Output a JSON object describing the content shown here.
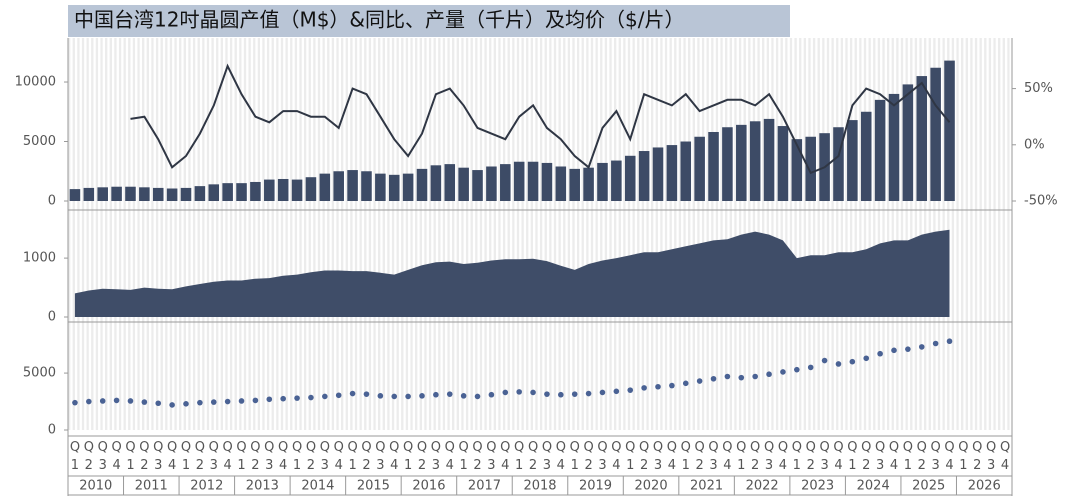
{
  "chart_data": {
    "type": "combo",
    "title": "中国台湾12吋晶圆产值（M$）&同比、产量（千片）及均价（$/片）",
    "categories": [
      "Q1",
      "Q2",
      "Q3",
      "Q4",
      "Q1",
      "Q2",
      "Q3",
      "Q4",
      "Q1",
      "Q2",
      "Q3",
      "Q4",
      "Q1",
      "Q2",
      "Q3",
      "Q4",
      "Q1",
      "Q2",
      "Q3",
      "Q4",
      "Q1",
      "Q2",
      "Q3",
      "Q4",
      "Q1",
      "Q2",
      "Q3",
      "Q4",
      "Q1",
      "Q2",
      "Q3",
      "Q4",
      "Q1",
      "Q2",
      "Q3",
      "Q4",
      "Q1",
      "Q2",
      "Q3",
      "Q4",
      "Q1",
      "Q2",
      "Q3",
      "Q4",
      "Q1",
      "Q2",
      "Q3",
      "Q4",
      "Q1",
      "Q2",
      "Q3",
      "Q4",
      "Q1",
      "Q2",
      "Q3",
      "Q4",
      "Q1",
      "Q2",
      "Q3",
      "Q4",
      "Q1",
      "Q2",
      "Q3",
      "Q4",
      "Q1",
      "Q2",
      "Q3",
      "Q4"
    ],
    "years": [
      "2010",
      "2011",
      "2012",
      "2013",
      "2014",
      "2015",
      "2016",
      "2017",
      "2018",
      "2019",
      "2020",
      "2021",
      "2022",
      "2023",
      "2024",
      "2025",
      "2026"
    ],
    "panels": [
      {
        "ylim": [
          0,
          13700
        ],
        "yticks": [
          0,
          5000,
          10000
        ],
        "y2lim": [
          -50,
          95
        ],
        "y2ticks": [
          {
            "value": -50,
            "label": "-50%"
          },
          {
            "value": 0,
            "label": "0%"
          },
          {
            "value": 50,
            "label": "50%"
          }
        ],
        "series": [
          {
            "type": "bar",
            "color": "#3d4b66",
            "values": [
              1000,
              1100,
              1150,
              1200,
              1200,
              1150,
              1100,
              1050,
              1100,
              1250,
              1400,
              1500,
              1500,
              1600,
              1800,
              1850,
              1800,
              2000,
              2300,
              2500,
              2600,
              2500,
              2300,
              2200,
              2300,
              2700,
              3000,
              3100,
              2800,
              2600,
              2900,
              3100,
              3300,
              3300,
              3200,
              2900,
              2700,
              2800,
              3200,
              3400,
              3800,
              4200,
              4500,
              4700,
              5000,
              5400,
              5800,
              6200,
              6400,
              6700,
              6900,
              6300,
              5200,
              5400,
              5700,
              6200,
              6800,
              7500,
              8500,
              9000,
              9800,
              10500,
              11200,
              11800,
              null,
              null,
              null,
              null
            ]
          },
          {
            "type": "line",
            "axis": "y2",
            "color": "#2f3644",
            "values": [
              null,
              null,
              null,
              null,
              23,
              25,
              5,
              -20,
              -10,
              10,
              35,
              70,
              45,
              25,
              20,
              30,
              30,
              25,
              25,
              15,
              50,
              45,
              25,
              5,
              -10,
              10,
              45,
              50,
              35,
              15,
              10,
              5,
              25,
              35,
              15,
              5,
              -10,
              -20,
              15,
              30,
              5,
              45,
              40,
              35,
              45,
              30,
              35,
              40,
              40,
              35,
              45,
              25,
              0,
              -25,
              -20,
              -10,
              35,
              50,
              45,
              35,
              45,
              55,
              35,
              20,
              null,
              null,
              null,
              null
            ]
          }
        ]
      },
      {
        "ylim": [
          0,
          1800
        ],
        "yticks": [
          0,
          1000
        ],
        "series": [
          {
            "type": "area",
            "color": "#3f4d68",
            "values": [
              400,
              450,
              480,
              470,
              460,
              500,
              480,
              470,
              520,
              560,
              600,
              620,
              620,
              650,
              660,
              700,
              720,
              760,
              790,
              790,
              780,
              780,
              750,
              720,
              800,
              880,
              930,
              940,
              900,
              920,
              960,
              980,
              980,
              990,
              950,
              870,
              800,
              900,
              960,
              1000,
              1050,
              1100,
              1100,
              1150,
              1200,
              1250,
              1300,
              1320,
              1400,
              1450,
              1400,
              1300,
              1000,
              1050,
              1050,
              1100,
              1100,
              1150,
              1250,
              1300,
              1300,
              1400,
              1450,
              1480,
              null,
              null,
              null,
              null
            ]
          }
        ]
      },
      {
        "ylim": [
          0,
          9400
        ],
        "yticks": [
          0,
          5000
        ],
        "series": [
          {
            "type": "scatter",
            "color": "#4a6294",
            "values": [
              2400,
              2500,
              2550,
              2600,
              2550,
              2450,
              2350,
              2200,
              2300,
              2400,
              2450,
              2500,
              2550,
              2600,
              2700,
              2750,
              2800,
              2850,
              2950,
              3050,
              3200,
              3150,
              3000,
              2950,
              2950,
              3000,
              3100,
              3150,
              3000,
              2950,
              3100,
              3300,
              3350,
              3300,
              3150,
              3100,
              3150,
              3200,
              3300,
              3400,
              3500,
              3700,
              3800,
              3900,
              4100,
              4300,
              4500,
              4700,
              4600,
              4700,
              4900,
              5100,
              5300,
              5500,
              6100,
              5800,
              6000,
              6300,
              6700,
              7000,
              7100,
              7300,
              7600,
              7800,
              null,
              null,
              null,
              null
            ]
          }
        ]
      }
    ]
  }
}
